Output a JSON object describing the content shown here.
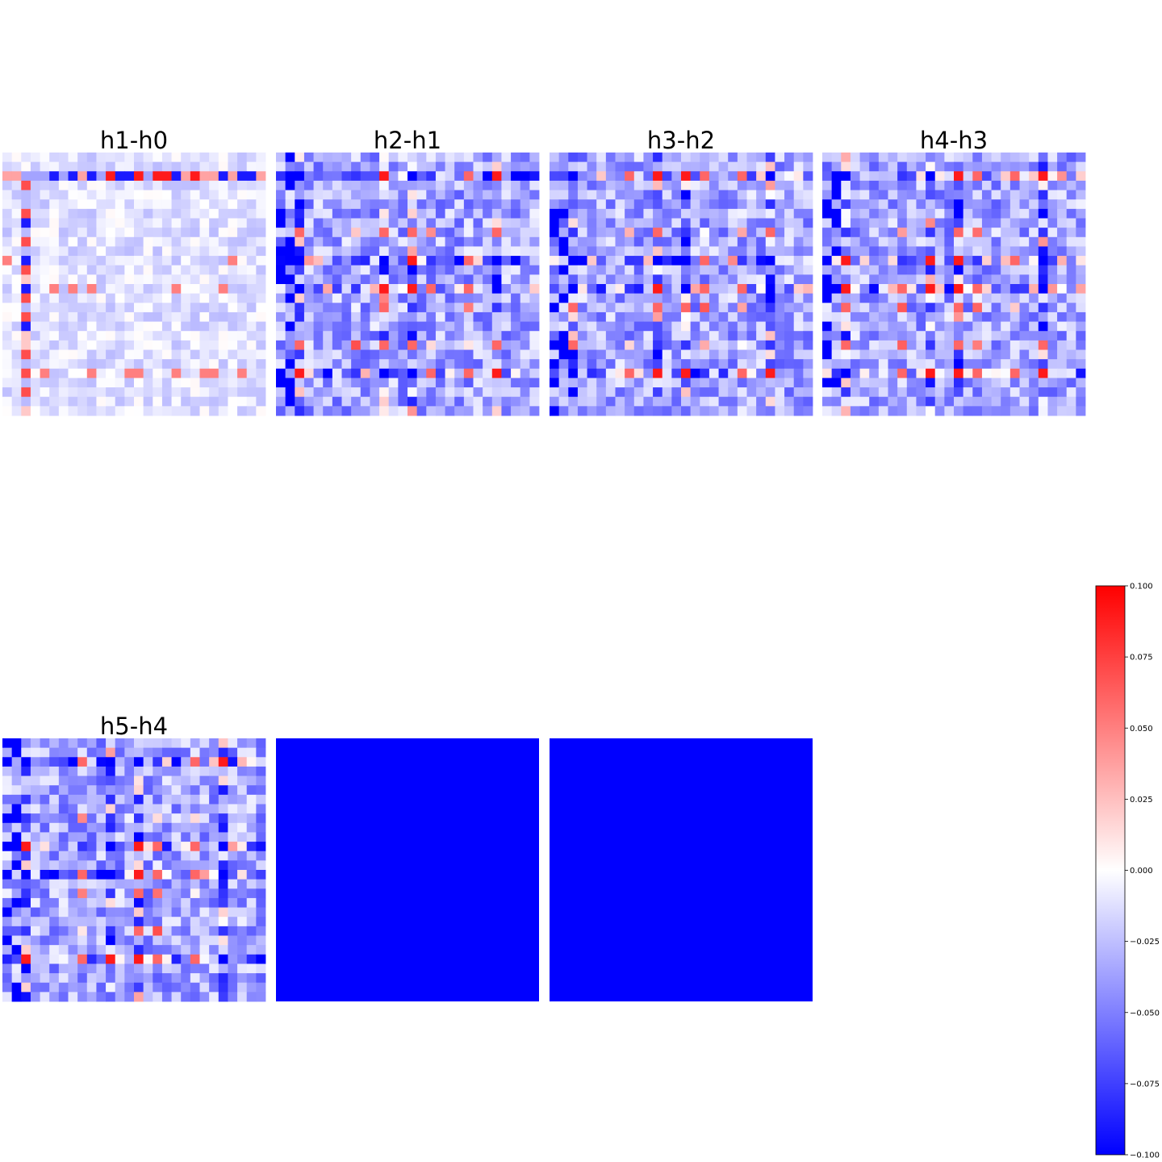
{
  "chart_data": {
    "type": "heatmap",
    "layout": {
      "rows": 2,
      "cols": 4
    },
    "grid_size": [
      28,
      28
    ],
    "colormap": "bwr",
    "vmin": -0.1,
    "vmax": 0.1,
    "panels": [
      {
        "title": "h1-h0",
        "pattern": "faint",
        "note": "mostly near zero with a few strong rows/columns",
        "values": null
      },
      {
        "title": "h2-h1",
        "pattern": "structured",
        "values": null
      },
      {
        "title": "h3-h2",
        "pattern": "structured",
        "values": null
      },
      {
        "title": "h4-h3",
        "pattern": "structured",
        "values": null
      },
      {
        "title": "h5-h4",
        "pattern": "structured",
        "values": null
      },
      {
        "title": "",
        "pattern": "constant",
        "constant_value": -0.1
      },
      {
        "title": "",
        "pattern": "constant",
        "constant_value": -0.1
      }
    ],
    "colorbar": {
      "ticks": [
        0.1,
        0.075,
        0.05,
        0.025,
        0.0,
        -0.025,
        -0.05,
        -0.075,
        -0.1
      ],
      "tick_labels": [
        "0.100",
        "0.075",
        "0.050",
        "0.025",
        "0.000",
        "−0.025",
        "−0.050",
        "−0.075",
        "−0.100"
      ]
    }
  }
}
